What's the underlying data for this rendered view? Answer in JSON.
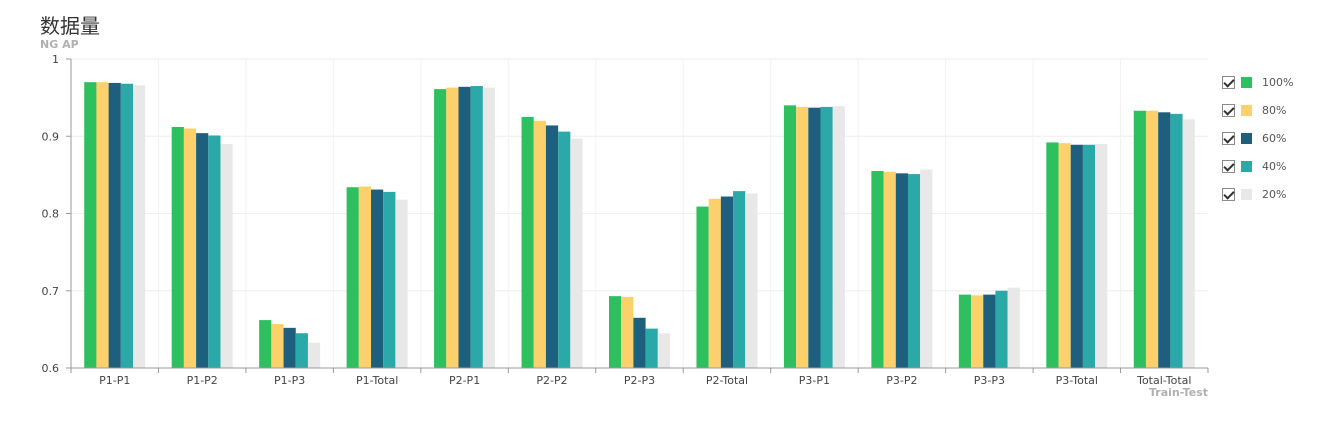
{
  "title": "数据量",
  "chart_data": {
    "type": "bar",
    "title": "数据量",
    "ylabel": "NG AP",
    "xlabel": "Train-Test",
    "ylim": [
      0.6,
      1
    ],
    "yticks": [
      "1",
      "0.9",
      "0.8",
      "0.7",
      "0.6"
    ],
    "grid": true,
    "legend_position": "right",
    "categories": [
      "P1-P1",
      "P1-P2",
      "P1-P3",
      "P1-Total",
      "P2-P1",
      "P2-P2",
      "P2-P3",
      "P2-Total",
      "P3-P1",
      "P3-P2",
      "P3-P3",
      "P3-Total",
      "Total-Total"
    ],
    "series": [
      {
        "name": "100%",
        "color": "#2ebf5e",
        "values": [
          0.97,
          0.912,
          0.662,
          0.834,
          0.961,
          0.925,
          0.693,
          0.809,
          0.94,
          0.855,
          0.695,
          0.892,
          0.933
        ]
      },
      {
        "name": "80%",
        "color": "#fcd06b",
        "values": [
          0.97,
          0.91,
          0.657,
          0.835,
          0.963,
          0.92,
          0.692,
          0.819,
          0.938,
          0.854,
          0.694,
          0.891,
          0.933
        ]
      },
      {
        "name": "60%",
        "color": "#1f5f7e",
        "values": [
          0.969,
          0.904,
          0.652,
          0.831,
          0.964,
          0.914,
          0.665,
          0.822,
          0.937,
          0.852,
          0.695,
          0.889,
          0.931
        ]
      },
      {
        "name": "40%",
        "color": "#2ba8a8",
        "values": [
          0.968,
          0.901,
          0.645,
          0.828,
          0.965,
          0.906,
          0.651,
          0.829,
          0.938,
          0.851,
          0.7,
          0.889,
          0.929
        ]
      },
      {
        "name": "20%",
        "color": "#e8e8e8",
        "values": [
          0.966,
          0.89,
          0.633,
          0.818,
          0.963,
          0.897,
          0.645,
          0.826,
          0.939,
          0.857,
          0.704,
          0.89,
          0.922
        ]
      }
    ]
  }
}
